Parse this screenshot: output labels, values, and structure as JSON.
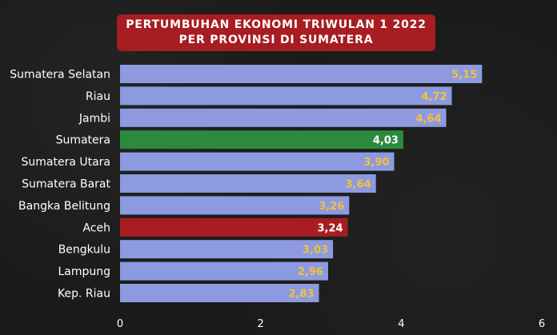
{
  "title": {
    "line1": "PERTUMBUHAN EKONOMI TRIWULAN 1 2022",
    "line2": "PER PROVINSI DI SUMATERA"
  },
  "colors": {
    "default_bar": "#8d9ae0",
    "highlight_green": "#2c8a3c",
    "highlight_red": "#a71d22",
    "value_on_default": "#f0c43a",
    "value_on_highlight": "#ffffff"
  },
  "chart_data": {
    "type": "bar",
    "orientation": "horizontal",
    "title": "PERTUMBUHAN EKONOMI TRIWULAN 1 2022 PER PROVINSI DI SUMATERA",
    "categories": [
      "Sumatera Selatan",
      "Riau",
      "Jambi",
      "Sumatera",
      "Sumatera Utara",
      "Sumatera Barat",
      "Bangka Belitung",
      "Aceh",
      "Bengkulu",
      "Lampung",
      "Kep. Riau"
    ],
    "values": [
      5.15,
      4.72,
      4.64,
      4.03,
      3.9,
      3.64,
      3.26,
      3.24,
      3.03,
      2.96,
      2.83
    ],
    "value_labels": [
      "5,15",
      "4,72",
      "4,64",
      "4,03",
      "3,90",
      "3,64",
      "3,26",
      "3,24",
      "3,03",
      "2,96",
      "2,83"
    ],
    "highlight": {
      "Sumatera": "green",
      "Aceh": "red"
    },
    "xlim": [
      0,
      6
    ],
    "xticks": [
      "0",
      "2",
      "4",
      "6"
    ],
    "xlabel": "",
    "ylabel": "",
    "grid": false,
    "legend": "none"
  }
}
